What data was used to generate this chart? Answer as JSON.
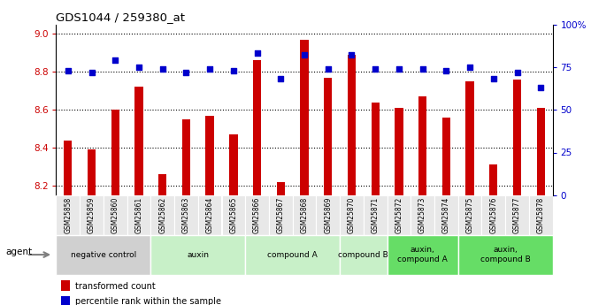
{
  "title": "GDS1044 / 259380_at",
  "samples": [
    "GSM25858",
    "GSM25859",
    "GSM25860",
    "GSM25861",
    "GSM25862",
    "GSM25863",
    "GSM25864",
    "GSM25865",
    "GSM25866",
    "GSM25867",
    "GSM25868",
    "GSM25869",
    "GSM25870",
    "GSM25871",
    "GSM25872",
    "GSM25873",
    "GSM25874",
    "GSM25875",
    "GSM25876",
    "GSM25877",
    "GSM25878"
  ],
  "bar_values": [
    8.44,
    8.39,
    8.6,
    8.72,
    8.26,
    8.55,
    8.57,
    8.47,
    8.86,
    8.22,
    8.97,
    8.77,
    8.89,
    8.64,
    8.61,
    8.67,
    8.56,
    8.75,
    8.31,
    8.76,
    8.61
  ],
  "percentile_values": [
    73,
    72,
    79,
    75,
    74,
    72,
    74,
    73,
    83,
    68,
    82,
    74,
    82,
    74,
    74,
    74,
    73,
    75,
    68,
    72,
    63
  ],
  "ylim_left": [
    8.15,
    9.05
  ],
  "ylim_right": [
    0,
    100
  ],
  "yticks_left": [
    8.2,
    8.4,
    8.6,
    8.8,
    9.0
  ],
  "yticks_right": [
    0,
    25,
    50,
    75,
    100
  ],
  "ytick_labels_right": [
    "0",
    "25",
    "50",
    "75",
    "100%"
  ],
  "bar_color": "#cc0000",
  "dot_color": "#0000cc",
  "groups": [
    {
      "label": "negative control",
      "start": 0,
      "end": 3,
      "color": "#d0d0d0"
    },
    {
      "label": "auxin",
      "start": 4,
      "end": 7,
      "color": "#c8f0c8"
    },
    {
      "label": "compound A",
      "start": 8,
      "end": 11,
      "color": "#c8f0c8"
    },
    {
      "label": "compound B",
      "start": 12,
      "end": 13,
      "color": "#c8f0c8"
    },
    {
      "label": "auxin,\ncompound A",
      "start": 14,
      "end": 16,
      "color": "#66dd66"
    },
    {
      "label": "auxin,\ncompound B",
      "start": 17,
      "end": 20,
      "color": "#66dd66"
    }
  ],
  "legend_bar_label": "transformed count",
  "legend_dot_label": "percentile rank within the sample",
  "agent_label": "agent",
  "grid_color": "#000000",
  "sample_bg_color": "#e8e8e8"
}
